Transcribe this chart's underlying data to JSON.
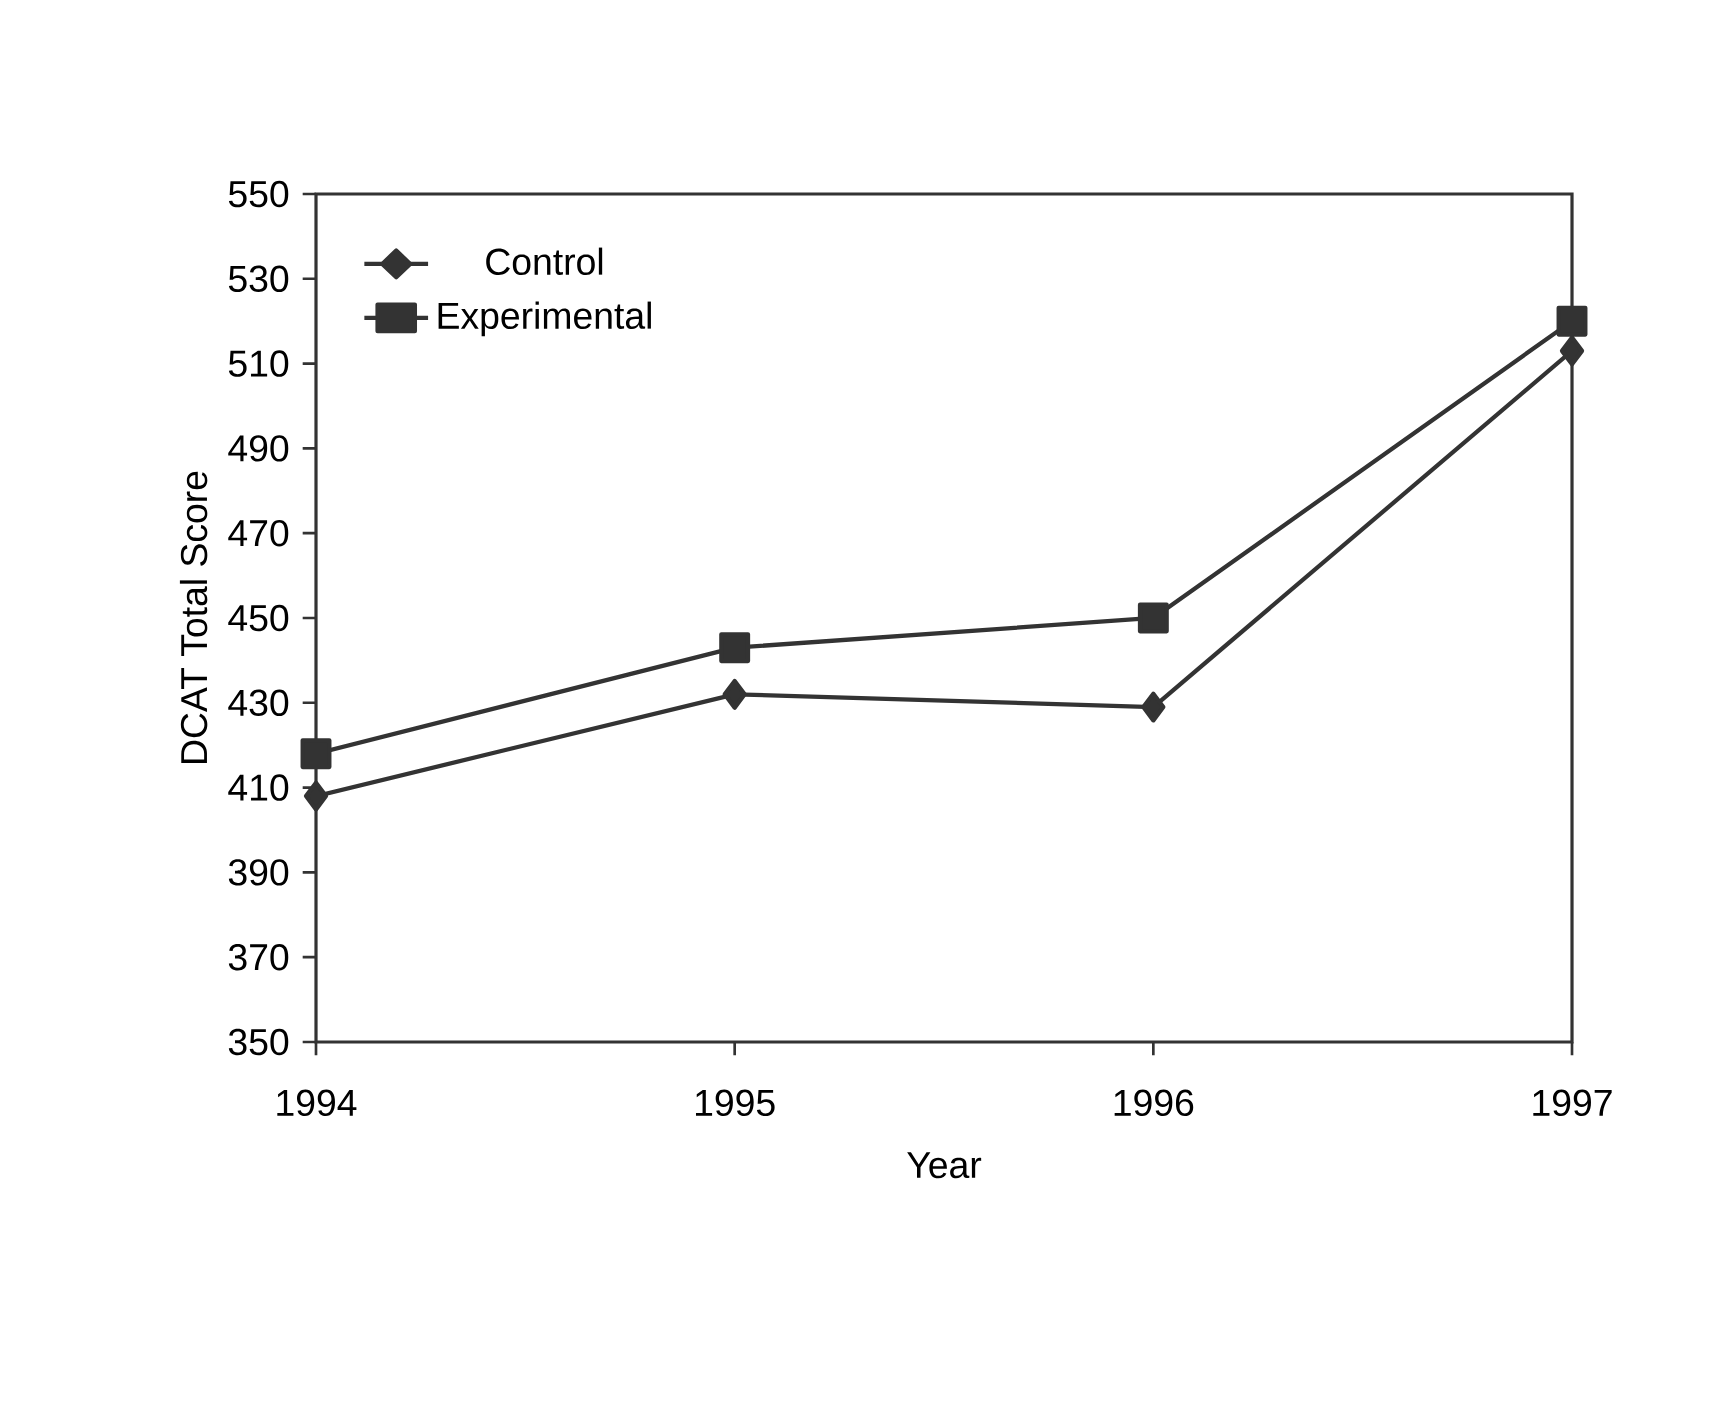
{
  "chart_data": {
    "type": "line",
    "xlabel": "Year",
    "ylabel": "DCAT Total Score",
    "x": [
      1994,
      1995,
      1996,
      1997
    ],
    "xlim": [
      1994,
      1997
    ],
    "xticks": [
      1994,
      1995,
      1996,
      1997
    ],
    "ylim": [
      350,
      550
    ],
    "yticks": [
      350,
      370,
      390,
      410,
      430,
      450,
      470,
      490,
      510,
      530,
      550
    ],
    "legend": "top left",
    "grid": false,
    "line_style": "solid",
    "series": [
      {
        "name": "Control",
        "color": "#333333",
        "marker": "diamond",
        "values": [
          408,
          432,
          429,
          513
        ]
      },
      {
        "name": "Experimental",
        "color": "#333333",
        "marker": "square",
        "values": [
          418,
          443,
          450,
          520
        ]
      }
    ]
  }
}
